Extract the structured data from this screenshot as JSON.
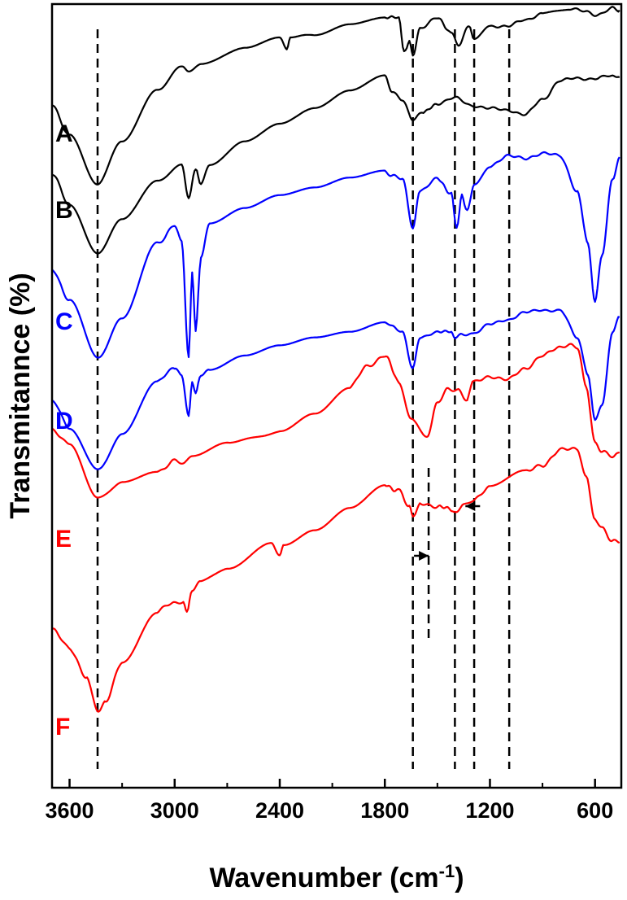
{
  "chart_data": {
    "type": "line",
    "title": "",
    "xlabel": "Wavenumber (cm-1)",
    "xlabel_parts": {
      "main": "Wavenumber (cm",
      "sup": "-1",
      "close": ")"
    },
    "ylabel": "Transmitannce (%)",
    "xlim": [
      3700,
      450
    ],
    "x_reversed": true,
    "x_ticks": [
      3600,
      3000,
      2400,
      1800,
      1200,
      600
    ],
    "y_ticks_shown": false,
    "grid": false,
    "reference_lines_cm": [
      3440,
      1640,
      1400,
      1290,
      1090
    ],
    "arrow_positions_cm": [
      1550,
      1340
    ],
    "series": [
      {
        "name": "A",
        "color": "#000000",
        "points": [
          [
            3700,
            0.55
          ],
          [
            3600,
            0.4
          ],
          [
            3440,
            0.17
          ],
          [
            3300,
            0.38
          ],
          [
            3100,
            0.62
          ],
          [
            2960,
            0.73
          ],
          [
            2920,
            0.71
          ],
          [
            2850,
            0.74
          ],
          [
            2600,
            0.82
          ],
          [
            2400,
            0.87
          ],
          [
            2360,
            0.81
          ],
          [
            2340,
            0.87
          ],
          [
            2200,
            0.88
          ],
          [
            2000,
            0.93
          ],
          [
            1800,
            0.96
          ],
          [
            1720,
            0.95
          ],
          [
            1690,
            0.8
          ],
          [
            1660,
            0.84
          ],
          [
            1640,
            0.78
          ],
          [
            1600,
            0.91
          ],
          [
            1500,
            0.95
          ],
          [
            1420,
            0.89
          ],
          [
            1380,
            0.83
          ],
          [
            1320,
            0.91
          ],
          [
            1290,
            0.86
          ],
          [
            1200,
            0.92
          ],
          [
            1100,
            0.91
          ],
          [
            1000,
            0.95
          ],
          [
            900,
            0.97
          ],
          [
            750,
            1.0
          ],
          [
            650,
            0.98
          ],
          [
            600,
            0.97
          ],
          [
            500,
            1.0
          ],
          [
            460,
            0.99
          ]
        ]
      },
      {
        "name": "B",
        "color": "#000000",
        "points": [
          [
            3700,
            0.54
          ],
          [
            3600,
            0.4
          ],
          [
            3440,
            0.18
          ],
          [
            3300,
            0.33
          ],
          [
            3100,
            0.51
          ],
          [
            2960,
            0.58
          ],
          [
            2920,
            0.43
          ],
          [
            2880,
            0.57
          ],
          [
            2850,
            0.49
          ],
          [
            2800,
            0.59
          ],
          [
            2600,
            0.7
          ],
          [
            2400,
            0.78
          ],
          [
            2200,
            0.85
          ],
          [
            2000,
            0.93
          ],
          [
            1800,
            1.0
          ],
          [
            1760,
            0.93
          ],
          [
            1700,
            0.9
          ],
          [
            1640,
            0.8
          ],
          [
            1580,
            0.83
          ],
          [
            1500,
            0.88
          ],
          [
            1400,
            0.9
          ],
          [
            1300,
            0.87
          ],
          [
            1200,
            0.85
          ],
          [
            1100,
            0.85
          ],
          [
            1000,
            0.82
          ],
          [
            900,
            0.9
          ],
          [
            800,
            0.98
          ],
          [
            700,
            1.0
          ],
          [
            600,
            0.99
          ],
          [
            500,
            1.01
          ],
          [
            460,
            1.0
          ]
        ]
      },
      {
        "name": "C",
        "color": "#0000ff",
        "points": [
          [
            3700,
            0.55
          ],
          [
            3600,
            0.42
          ],
          [
            3440,
            0.19
          ],
          [
            3300,
            0.35
          ],
          [
            3100,
            0.65
          ],
          [
            3000,
            0.72
          ],
          [
            2960,
            0.66
          ],
          [
            2920,
            0.2
          ],
          [
            2900,
            0.53
          ],
          [
            2880,
            0.3
          ],
          [
            2850,
            0.6
          ],
          [
            2800,
            0.73
          ],
          [
            2600,
            0.79
          ],
          [
            2400,
            0.84
          ],
          [
            2200,
            0.87
          ],
          [
            2000,
            0.91
          ],
          [
            1800,
            0.94
          ],
          [
            1760,
            0.92
          ],
          [
            1700,
            0.9
          ],
          [
            1640,
            0.71
          ],
          [
            1600,
            0.86
          ],
          [
            1500,
            0.9
          ],
          [
            1420,
            0.85
          ],
          [
            1390,
            0.7
          ],
          [
            1360,
            0.84
          ],
          [
            1330,
            0.78
          ],
          [
            1290,
            0.89
          ],
          [
            1200,
            0.96
          ],
          [
            1100,
            0.99
          ],
          [
            1000,
            0.99
          ],
          [
            900,
            1.0
          ],
          [
            800,
            1.0
          ],
          [
            700,
            0.85
          ],
          [
            640,
            0.65
          ],
          [
            600,
            0.42
          ],
          [
            560,
            0.6
          ],
          [
            500,
            0.9
          ],
          [
            460,
            0.99
          ]
        ]
      },
      {
        "name": "D",
        "color": "#0000ff",
        "points": [
          [
            3700,
            0.53
          ],
          [
            3600,
            0.4
          ],
          [
            3440,
            0.19
          ],
          [
            3300,
            0.36
          ],
          [
            3100,
            0.63
          ],
          [
            3000,
            0.7
          ],
          [
            2960,
            0.66
          ],
          [
            2920,
            0.45
          ],
          [
            2900,
            0.63
          ],
          [
            2880,
            0.58
          ],
          [
            2850,
            0.66
          ],
          [
            2800,
            0.69
          ],
          [
            2600,
            0.76
          ],
          [
            2400,
            0.81
          ],
          [
            2200,
            0.85
          ],
          [
            2000,
            0.88
          ],
          [
            1800,
            0.93
          ],
          [
            1760,
            0.91
          ],
          [
            1700,
            0.89
          ],
          [
            1640,
            0.7
          ],
          [
            1600,
            0.85
          ],
          [
            1500,
            0.89
          ],
          [
            1420,
            0.88
          ],
          [
            1400,
            0.85
          ],
          [
            1360,
            0.87
          ],
          [
            1300,
            0.88
          ],
          [
            1200,
            0.92
          ],
          [
            1100,
            0.95
          ],
          [
            1000,
            0.98
          ],
          [
            900,
            1.0
          ],
          [
            800,
            0.99
          ],
          [
            700,
            0.86
          ],
          [
            640,
            0.66
          ],
          [
            600,
            0.43
          ],
          [
            560,
            0.52
          ],
          [
            500,
            0.89
          ],
          [
            460,
            0.96
          ]
        ]
      },
      {
        "name": "E",
        "color": "#ff0000",
        "points": [
          [
            3700,
            0.71
          ],
          [
            3600,
            0.65
          ],
          [
            3440,
            0.44
          ],
          [
            3300,
            0.51
          ],
          [
            3100,
            0.55
          ],
          [
            3000,
            0.59
          ],
          [
            2950,
            0.57
          ],
          [
            2900,
            0.61
          ],
          [
            2700,
            0.66
          ],
          [
            2400,
            0.7
          ],
          [
            2200,
            0.77
          ],
          [
            2000,
            0.87
          ],
          [
            1900,
            0.94
          ],
          [
            1800,
            0.99
          ],
          [
            1720,
            0.88
          ],
          [
            1650,
            0.75
          ],
          [
            1560,
            0.68
          ],
          [
            1500,
            0.8
          ],
          [
            1440,
            0.86
          ],
          [
            1380,
            0.86
          ],
          [
            1330,
            0.82
          ],
          [
            1300,
            0.88
          ],
          [
            1200,
            0.91
          ],
          [
            1100,
            0.89
          ],
          [
            1000,
            0.94
          ],
          [
            900,
            0.98
          ],
          [
            800,
            1.02
          ],
          [
            750,
            1.03
          ],
          [
            700,
            1.01
          ],
          [
            650,
            0.86
          ],
          [
            600,
            0.66
          ],
          [
            560,
            0.62
          ],
          [
            500,
            0.6
          ],
          [
            460,
            0.62
          ]
        ]
      },
      {
        "name": "F",
        "color": "#ff0000",
        "points": [
          [
            3700,
            0.47
          ],
          [
            3600,
            0.42
          ],
          [
            3500,
            0.32
          ],
          [
            3440,
            0.22
          ],
          [
            3400,
            0.25
          ],
          [
            3300,
            0.37
          ],
          [
            3100,
            0.53
          ],
          [
            3000,
            0.56
          ],
          [
            2950,
            0.57
          ],
          [
            2930,
            0.54
          ],
          [
            2900,
            0.6
          ],
          [
            2850,
            0.62
          ],
          [
            2700,
            0.67
          ],
          [
            2450,
            0.74
          ],
          [
            2400,
            0.71
          ],
          [
            2380,
            0.74
          ],
          [
            2200,
            0.79
          ],
          [
            2000,
            0.86
          ],
          [
            1800,
            0.93
          ],
          [
            1720,
            0.92
          ],
          [
            1660,
            0.87
          ],
          [
            1640,
            0.83
          ],
          [
            1600,
            0.87
          ],
          [
            1500,
            0.87
          ],
          [
            1420,
            0.85
          ],
          [
            1400,
            0.84
          ],
          [
            1350,
            0.87
          ],
          [
            1300,
            0.89
          ],
          [
            1200,
            0.92
          ],
          [
            1000,
            0.97
          ],
          [
            900,
            1.0
          ],
          [
            800,
            1.04
          ],
          [
            700,
            1.05
          ],
          [
            650,
            0.96
          ],
          [
            600,
            0.82
          ],
          [
            560,
            0.8
          ],
          [
            500,
            0.76
          ],
          [
            460,
            0.75
          ]
        ]
      }
    ],
    "series_labels": [
      {
        "text": "A",
        "color": "#000000"
      },
      {
        "text": "B",
        "color": "#000000"
      },
      {
        "text": "C",
        "color": "#0000ff"
      },
      {
        "text": "D",
        "color": "#0000ff"
      },
      {
        "text": "E",
        "color": "#ff0000"
      },
      {
        "text": "F",
        "color": "#ff0000"
      }
    ]
  }
}
